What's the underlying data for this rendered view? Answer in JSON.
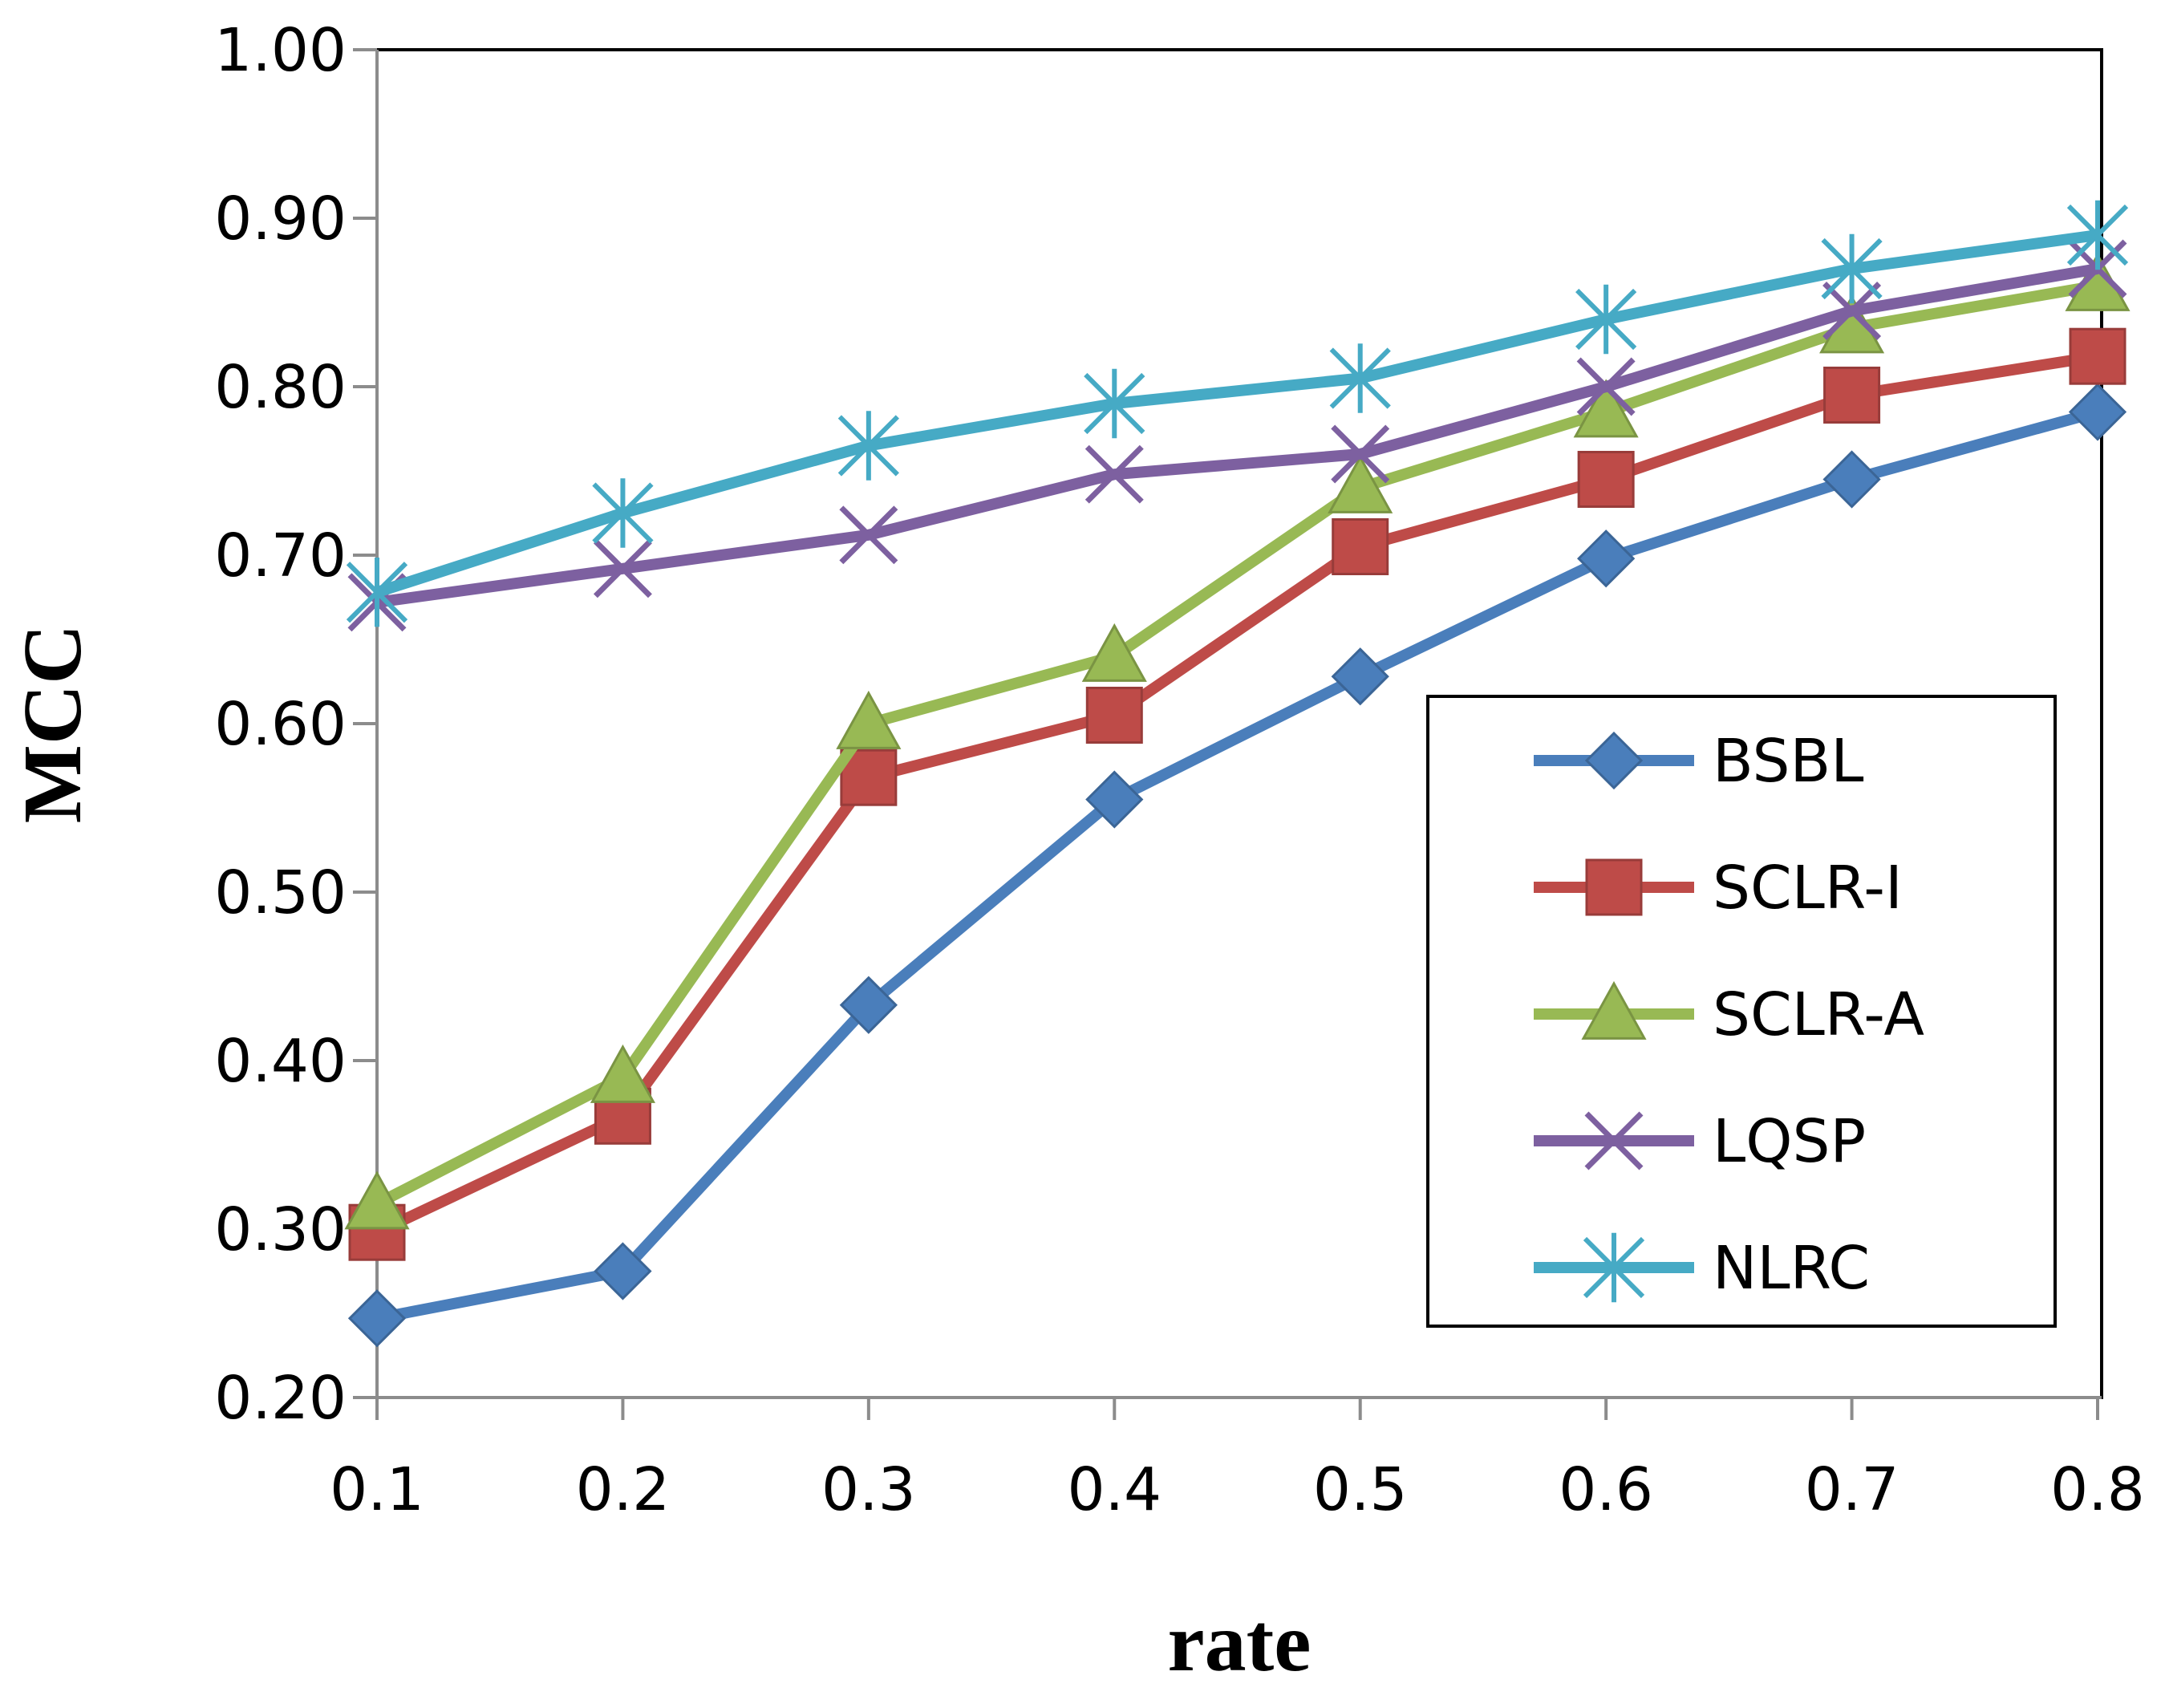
{
  "chart_data": {
    "type": "line",
    "title": "",
    "xlabel": "rate",
    "ylabel": "MCC",
    "x": [
      0.1,
      0.2,
      0.3,
      0.4,
      0.5,
      0.6,
      0.7,
      0.8
    ],
    "x_tick_labels": [
      "0.1",
      "0.2",
      "0.3",
      "0.4",
      "0.5",
      "0.6",
      "0.7",
      "0.8"
    ],
    "ylim": [
      0.2,
      1.0
    ],
    "y_ticks": [
      0.2,
      0.3,
      0.4,
      0.5,
      0.6,
      0.7,
      0.8,
      0.9,
      1.0
    ],
    "y_tick_labels": [
      "0.20",
      "0.30",
      "0.40",
      "0.50",
      "0.60",
      "0.70",
      "0.80",
      "0.90",
      "1.00"
    ],
    "grid": false,
    "legend_position": "right-middle",
    "series": [
      {
        "name": "BSBL",
        "marker": "diamond",
        "color": "#4a7ebb",
        "values": [
          0.247,
          0.275,
          0.433,
          0.555,
          0.628,
          0.698,
          0.745,
          0.785
        ]
      },
      {
        "name": "SCLR-I",
        "marker": "square",
        "color": "#be4b48",
        "values": [
          0.298,
          0.367,
          0.568,
          0.605,
          0.705,
          0.745,
          0.795,
          0.818
        ]
      },
      {
        "name": "SCLR-A",
        "marker": "triangle",
        "color": "#98b954",
        "values": [
          0.315,
          0.39,
          0.6,
          0.64,
          0.74,
          0.785,
          0.835,
          0.86
        ]
      },
      {
        "name": "LQSP",
        "marker": "x",
        "color": "#7d60a0",
        "values": [
          0.672,
          0.692,
          0.712,
          0.748,
          0.76,
          0.8,
          0.845,
          0.87
        ]
      },
      {
        "name": "NLRC",
        "marker": "star",
        "color": "#46aac5",
        "values": [
          0.678,
          0.725,
          0.765,
          0.79,
          0.805,
          0.84,
          0.87,
          0.89
        ]
      }
    ]
  }
}
